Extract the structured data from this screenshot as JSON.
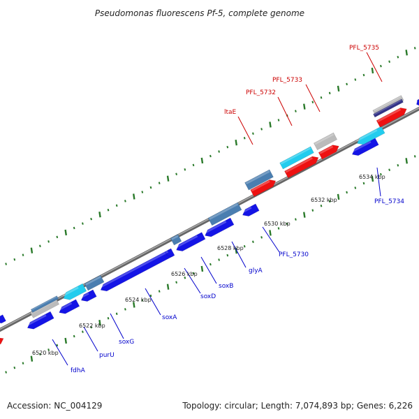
{
  "title": "Pseudomonas fluorescens Pf-5, complete genome",
  "footer": {
    "accession": "Accession: NC_004129",
    "summary": "Topology: circular; Length: 7,074,893 bp; Genes: 6,226"
  },
  "colors": {
    "backbone": "#888888",
    "tick": "#2a7a2a",
    "label_forward": "#cc0000",
    "label_reverse": "#0000cc",
    "feature_blue": "#1414e6",
    "feature_red": "#ee1111",
    "feature_cyan": "#22ccee",
    "feature_steel": "#4a7eb0",
    "feature_gray": "#bbbbbb",
    "feature_navy": "#333388"
  },
  "kbp_labels": [
    "6520 kbp",
    "6522 kbp",
    "6524 kbp",
    "6526 kbp",
    "6528 kbp",
    "6530 kbp",
    "6532 kbp",
    "6534 kbp"
  ],
  "gene_labels_forward": [
    "ltaE",
    "PFL_5732",
    "PFL_5733",
    "PFL_5735"
  ],
  "gene_labels_reverse": [
    "fdhA",
    "purU",
    "soxG",
    "soxA",
    "soxD",
    "soxB",
    "glyA",
    "PFL_5730",
    "PFL_5734"
  ]
}
